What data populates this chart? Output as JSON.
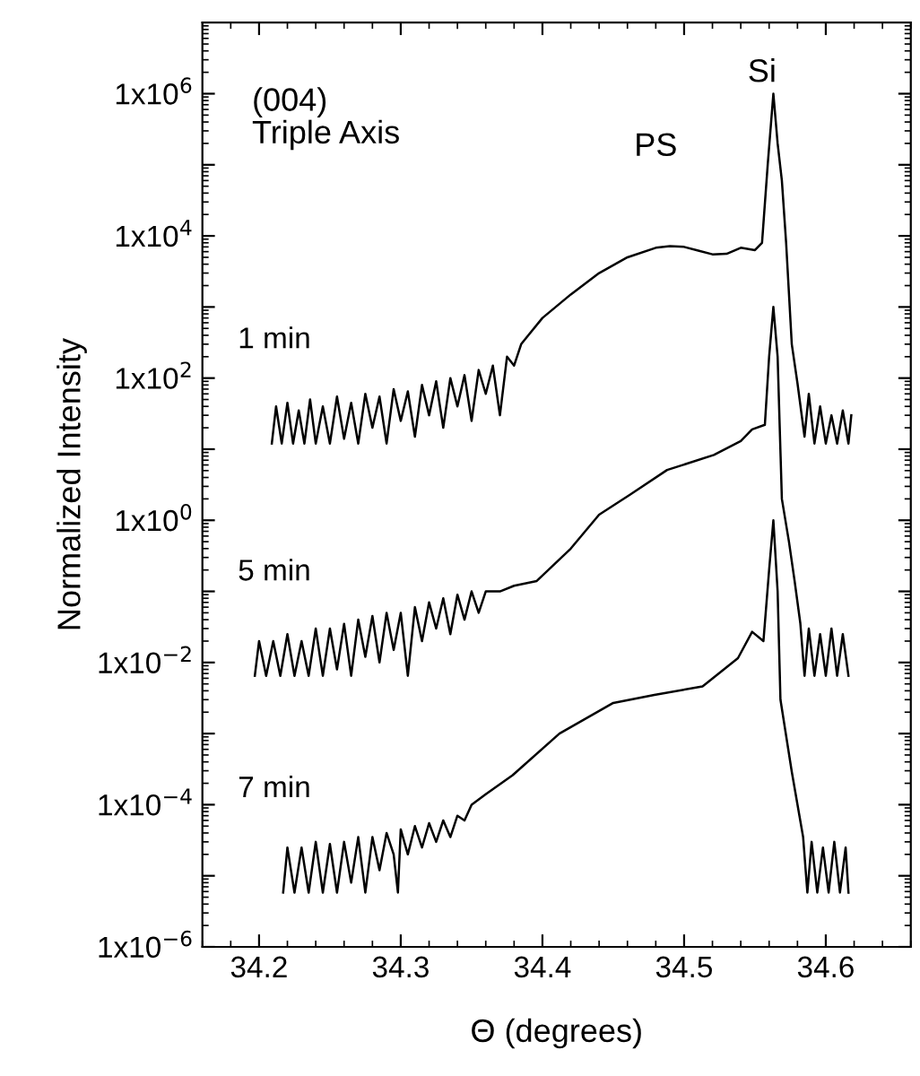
{
  "chart_data": {
    "type": "line",
    "xlabel": "Θ (degrees)",
    "ylabel": "Normalized Intensity",
    "log": "y",
    "xlim": [
      34.16,
      34.66
    ],
    "xticks": [
      34.2,
      34.3,
      34.4,
      34.5,
      34.6
    ],
    "ylim": [
      1e-06,
      10000000.0
    ],
    "yticks": [
      {
        "value": 1e-06,
        "label": "1x10$^{−6}$"
      },
      {
        "value": 1e-05,
        "label": null
      },
      {
        "value": 0.0001,
        "label": "1x10$^{−4}$"
      },
      {
        "value": 0.001,
        "label": null
      },
      {
        "value": 0.01,
        "label": "1x10$^{−2}$"
      },
      {
        "value": 0.1,
        "label": null
      },
      {
        "value": 1,
        "label": "1x10$^{0}$"
      },
      {
        "value": 10,
        "label": null
      },
      {
        "value": 100,
        "label": "1x10$^{2}$"
      },
      {
        "value": 1000,
        "label": null
      },
      {
        "value": 10000,
        "label": "1x10$^{4}$"
      },
      {
        "value": 100000,
        "label": null
      },
      {
        "value": 1000000,
        "label": "1x10$^{6}$"
      }
    ],
    "grid": false,
    "legend": false,
    "marker": "none",
    "line_style": "solid",
    "annotations": [
      "(004)\nTriple Axis",
      "PS",
      "Si"
    ],
    "series": [
      {
        "name": "1 min",
        "color": "#000000",
        "x": [
          34.209,
          34.212,
          34.216,
          34.22,
          34.224,
          34.228,
          34.232,
          34.236,
          34.24,
          34.245,
          34.25,
          34.255,
          34.26,
          34.265,
          34.27,
          34.275,
          34.28,
          34.285,
          34.29,
          34.295,
          34.3,
          34.305,
          34.31,
          34.315,
          34.32,
          34.325,
          34.33,
          34.335,
          34.34,
          34.345,
          34.35,
          34.355,
          34.36,
          34.365,
          34.37,
          34.375,
          34.38,
          34.385,
          34.39,
          34.4,
          34.42,
          34.44,
          34.46,
          34.48,
          34.49,
          34.5,
          34.51,
          34.52,
          34.53,
          34.54,
          34.55,
          34.555,
          34.559,
          34.563,
          34.566,
          34.569,
          34.572,
          34.576,
          34.58,
          34.585,
          34.588,
          34.592,
          34.596,
          34.6,
          34.604,
          34.608,
          34.612,
          34.616,
          34.618
        ],
        "values": [
          12,
          40,
          12,
          45,
          12,
          35,
          12,
          50,
          12,
          40,
          12,
          55,
          14,
          45,
          12,
          60,
          20,
          55,
          12,
          70,
          25,
          65,
          15,
          80,
          30,
          90,
          20,
          100,
          40,
          110,
          25,
          130,
          60,
          150,
          30,
          200,
          150,
          300,
          400,
          700,
          1500,
          3000,
          5000,
          6800,
          7200,
          7000,
          6200,
          5500,
          5600,
          6800,
          6300,
          8000,
          100000,
          1000000,
          200000,
          60000,
          8000,
          300,
          85,
          15,
          60,
          12,
          40,
          12,
          30,
          12,
          35,
          12,
          30
        ]
      },
      {
        "name": "5 min",
        "color": "#000000",
        "x": [
          34.197,
          34.2,
          34.205,
          34.21,
          34.215,
          34.22,
          34.225,
          34.23,
          34.235,
          34.24,
          34.245,
          34.25,
          34.255,
          34.26,
          34.265,
          34.27,
          34.275,
          34.28,
          34.285,
          34.29,
          34.295,
          34.3,
          34.305,
          34.31,
          34.315,
          34.32,
          34.325,
          34.33,
          34.335,
          34.34,
          34.345,
          34.35,
          34.355,
          34.36,
          34.37,
          34.38,
          34.396,
          34.42,
          34.44,
          34.462,
          34.488,
          34.521,
          34.54,
          34.548,
          34.557,
          34.56,
          34.563,
          34.566,
          34.569,
          34.574,
          34.578,
          34.582,
          34.585,
          34.588,
          34.592,
          34.596,
          34.6,
          34.604,
          34.608,
          34.612,
          34.616
        ],
        "values": [
          0.0065,
          0.02,
          0.0065,
          0.02,
          0.0065,
          0.025,
          0.0065,
          0.02,
          0.0065,
          0.03,
          0.0065,
          0.03,
          0.008,
          0.035,
          0.0065,
          0.04,
          0.012,
          0.045,
          0.01,
          0.05,
          0.015,
          0.05,
          0.0065,
          0.06,
          0.02,
          0.07,
          0.03,
          0.08,
          0.025,
          0.09,
          0.04,
          0.1,
          0.05,
          0.1,
          0.1,
          0.12,
          0.14,
          0.4,
          1.2,
          2.3,
          5.1,
          8.3,
          13,
          19,
          22,
          200,
          1000,
          200,
          2,
          0.5,
          0.14,
          0.036,
          0.0065,
          0.03,
          0.0065,
          0.025,
          0.0065,
          0.03,
          0.0065,
          0.025,
          0.0065
        ]
      },
      {
        "name": "7 min",
        "color": "#000000",
        "x": [
          34.217,
          34.22,
          34.225,
          34.23,
          34.235,
          34.24,
          34.245,
          34.25,
          34.255,
          34.26,
          34.265,
          34.27,
          34.275,
          34.28,
          34.285,
          34.29,
          34.295,
          34.298,
          34.3,
          34.305,
          34.31,
          34.315,
          34.32,
          34.325,
          34.33,
          34.335,
          34.34,
          34.345,
          34.35,
          34.36,
          34.379,
          34.412,
          34.45,
          34.479,
          34.513,
          34.538,
          34.548,
          34.556,
          34.56,
          34.563,
          34.566,
          34.568,
          34.576,
          34.584,
          34.587,
          34.59,
          34.594,
          34.598,
          34.602,
          34.606,
          34.61,
          34.614,
          34.616
        ],
        "values": [
          5.8e-06,
          2.5e-05,
          5.8e-06,
          2.5e-05,
          5.8e-06,
          3e-05,
          5.8e-06,
          2.8e-05,
          5.8e-06,
          3e-05,
          8e-06,
          3.5e-05,
          5.8e-06,
          3.5e-05,
          1.2e-05,
          4e-05,
          2e-05,
          5.8e-06,
          4.5e-05,
          2e-05,
          5e-05,
          2.5e-05,
          5.5e-05,
          3e-05,
          6e-05,
          3.5e-05,
          7e-05,
          6e-05,
          0.0001,
          0.00014,
          0.00026,
          0.001,
          0.0027,
          0.0035,
          0.0046,
          0.0115,
          0.027,
          0.02,
          0.2,
          1,
          0.1,
          0.003,
          0.00029,
          3.5e-05,
          5.8e-06,
          3e-05,
          5.8e-06,
          2.5e-05,
          5.8e-06,
          3e-05,
          5.8e-06,
          2.5e-05,
          5.8e-06
        ]
      }
    ]
  }
}
